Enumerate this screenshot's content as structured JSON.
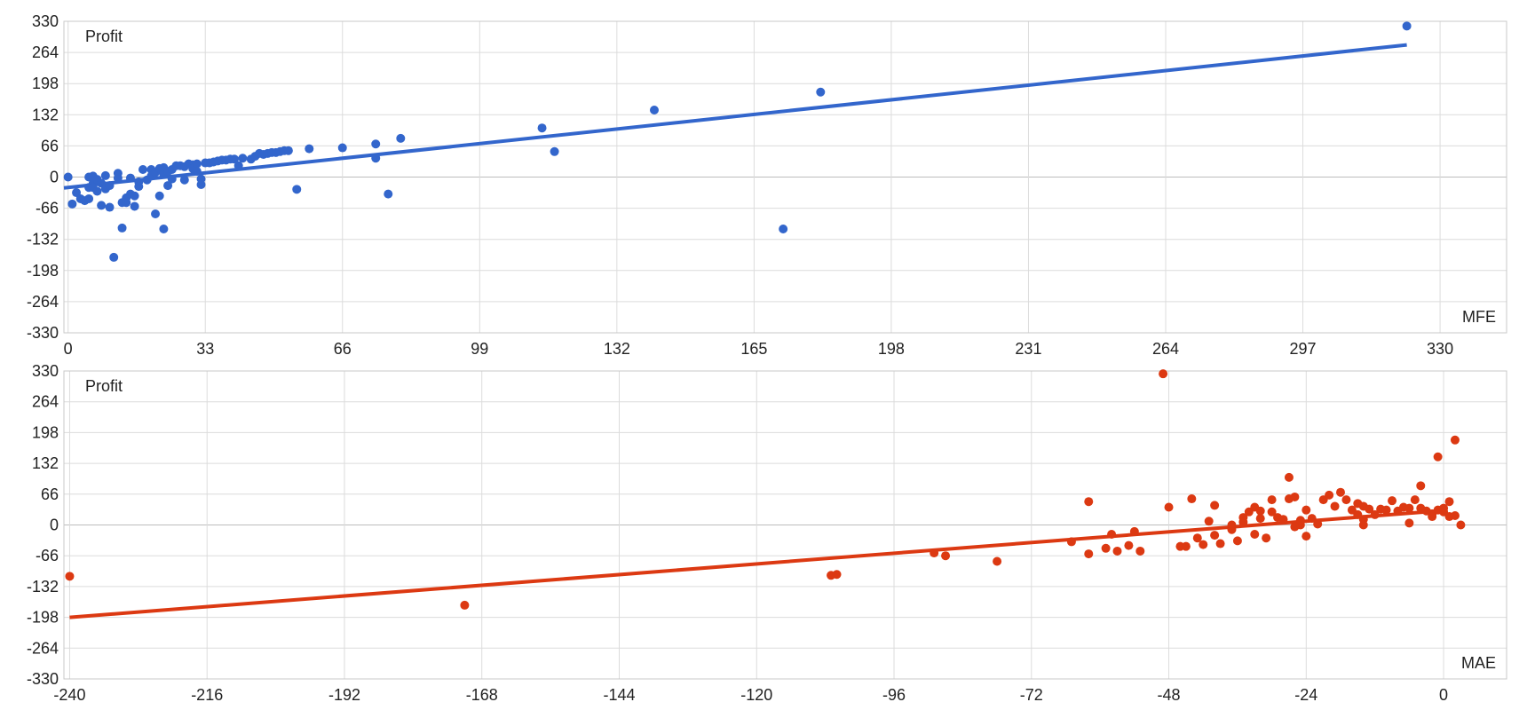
{
  "chart_data": [
    {
      "type": "scatter",
      "ylabel": "Profit",
      "xlabel": "MFE",
      "color": "#3366cc",
      "x_ticks": [
        0,
        33,
        66,
        99,
        132,
        165,
        198,
        231,
        264,
        297,
        330
      ],
      "y_ticks": [
        330,
        264,
        198,
        132,
        66,
        0,
        -66,
        -132,
        -198,
        -264,
        -330
      ],
      "xlim": [
        -1,
        346
      ],
      "ylim": [
        -330,
        330
      ],
      "grid": true,
      "trendline": {
        "x": [
          -1,
          322
        ],
        "y": [
          -23,
          280
        ]
      },
      "points": [
        [
          0,
          0
        ],
        [
          1,
          -57
        ],
        [
          2,
          -33
        ],
        [
          3,
          -46
        ],
        [
          4,
          -50
        ],
        [
          5,
          0
        ],
        [
          5,
          -22
        ],
        [
          5,
          -46
        ],
        [
          6,
          2
        ],
        [
          6,
          -14
        ],
        [
          6,
          -22
        ],
        [
          7,
          -5
        ],
        [
          7,
          -30
        ],
        [
          8,
          -13
        ],
        [
          8,
          -60
        ],
        [
          9,
          -25
        ],
        [
          9,
          3
        ],
        [
          10,
          -64
        ],
        [
          10,
          -18
        ],
        [
          11,
          -170
        ],
        [
          12,
          -2
        ],
        [
          12,
          8
        ],
        [
          13,
          -108
        ],
        [
          13,
          -54
        ],
        [
          14,
          -54
        ],
        [
          14,
          -44
        ],
        [
          15,
          -36
        ],
        [
          15,
          -2
        ],
        [
          16,
          -62
        ],
        [
          16,
          -40
        ],
        [
          17,
          -10
        ],
        [
          17,
          -20
        ],
        [
          18,
          16
        ],
        [
          19,
          -6
        ],
        [
          20,
          16
        ],
        [
          20,
          2
        ],
        [
          21,
          -78
        ],
        [
          21,
          10
        ],
        [
          22,
          -40
        ],
        [
          22,
          18
        ],
        [
          23,
          -110
        ],
        [
          23,
          6
        ],
        [
          23,
          20
        ],
        [
          24,
          12
        ],
        [
          24,
          -18
        ],
        [
          25,
          16
        ],
        [
          25,
          -4
        ],
        [
          26,
          24
        ],
        [
          27,
          24
        ],
        [
          28,
          22
        ],
        [
          28,
          -6
        ],
        [
          29,
          28
        ],
        [
          30,
          26
        ],
        [
          30,
          18
        ],
        [
          31,
          28
        ],
        [
          31,
          12
        ],
        [
          32,
          -4
        ],
        [
          32,
          -16
        ],
        [
          33,
          30
        ],
        [
          34,
          30
        ],
        [
          35,
          32
        ],
        [
          36,
          34
        ],
        [
          37,
          36
        ],
        [
          38,
          36
        ],
        [
          39,
          38
        ],
        [
          40,
          38
        ],
        [
          41,
          24
        ],
        [
          42,
          40
        ],
        [
          44,
          38
        ],
        [
          45,
          44
        ],
        [
          46,
          50
        ],
        [
          47,
          48
        ],
        [
          48,
          50
        ],
        [
          49,
          52
        ],
        [
          50,
          52
        ],
        [
          51,
          54
        ],
        [
          52,
          56
        ],
        [
          53,
          56
        ],
        [
          55,
          -26
        ],
        [
          58,
          60
        ],
        [
          66,
          62
        ],
        [
          74,
          70
        ],
        [
          74,
          40
        ],
        [
          77,
          -36
        ],
        [
          80,
          82
        ],
        [
          114,
          104
        ],
        [
          117,
          54
        ],
        [
          141,
          142
        ],
        [
          172,
          -110
        ],
        [
          181,
          180
        ],
        [
          322,
          320
        ]
      ]
    },
    {
      "type": "scatter",
      "ylabel": "Profit",
      "xlabel": "MAE",
      "color": "#dc3912",
      "x_ticks": [
        -240,
        -216,
        -192,
        -168,
        -144,
        -120,
        -96,
        -72,
        -48,
        -24,
        0
      ],
      "y_ticks": [
        330,
        264,
        198,
        132,
        66,
        0,
        -66,
        -132,
        -198,
        -264,
        -330
      ],
      "xlim": [
        -241,
        11
      ],
      "ylim": [
        -330,
        330
      ],
      "grid": true,
      "trendline": {
        "x": [
          -240,
          -1
        ],
        "y": [
          -198,
          30
        ]
      },
      "points": [
        [
          -240,
          -110
        ],
        [
          -171,
          -172
        ],
        [
          -107,
          -108
        ],
        [
          -106,
          -106
        ],
        [
          -89,
          -60
        ],
        [
          -87,
          -66
        ],
        [
          -78,
          -78
        ],
        [
          -65,
          -36
        ],
        [
          -62,
          -62
        ],
        [
          -62,
          50
        ],
        [
          -59,
          -50
        ],
        [
          -58,
          -20
        ],
        [
          -57,
          -56
        ],
        [
          -55,
          -44
        ],
        [
          -54,
          -14
        ],
        [
          -53,
          -56
        ],
        [
          -49,
          324
        ],
        [
          -48,
          38
        ],
        [
          -46,
          -46
        ],
        [
          -45,
          -46
        ],
        [
          -44,
          56
        ],
        [
          -43,
          -28
        ],
        [
          -42,
          -42
        ],
        [
          -41,
          8
        ],
        [
          -40,
          -22
        ],
        [
          -40,
          42
        ],
        [
          -39,
          -40
        ],
        [
          -37,
          -10
        ],
        [
          -37,
          0
        ],
        [
          -36,
          -34
        ],
        [
          -35,
          16
        ],
        [
          -35,
          6
        ],
        [
          -34,
          28
        ],
        [
          -33,
          38
        ],
        [
          -33,
          -20
        ],
        [
          -32,
          30
        ],
        [
          -32,
          14
        ],
        [
          -31,
          -28
        ],
        [
          -30,
          54
        ],
        [
          -30,
          28
        ],
        [
          -29,
          16
        ],
        [
          -28,
          12
        ],
        [
          -27,
          102
        ],
        [
          -27,
          56
        ],
        [
          -26,
          60
        ],
        [
          -26,
          -4
        ],
        [
          -25,
          0
        ],
        [
          -25,
          10
        ],
        [
          -24,
          32
        ],
        [
          -24,
          -24
        ],
        [
          -23,
          14
        ],
        [
          -22,
          2
        ],
        [
          -21,
          54
        ],
        [
          -20,
          64
        ],
        [
          -19,
          40
        ],
        [
          -18,
          70
        ],
        [
          -17,
          54
        ],
        [
          -16,
          32
        ],
        [
          -15,
          46
        ],
        [
          -15,
          22
        ],
        [
          -14,
          40
        ],
        [
          -14,
          12
        ],
        [
          -14,
          0
        ],
        [
          -13,
          34
        ],
        [
          -12,
          22
        ],
        [
          -11,
          34
        ],
        [
          -10,
          32
        ],
        [
          -9,
          52
        ],
        [
          -8,
          30
        ],
        [
          -7,
          38
        ],
        [
          -6,
          36
        ],
        [
          -6,
          4
        ],
        [
          -5,
          54
        ],
        [
          -4,
          84
        ],
        [
          -4,
          36
        ],
        [
          -3,
          30
        ],
        [
          -2,
          24
        ],
        [
          -2,
          18
        ],
        [
          -1,
          32
        ],
        [
          -1,
          146
        ],
        [
          0,
          28
        ],
        [
          0,
          36
        ],
        [
          1,
          50
        ],
        [
          1,
          18
        ],
        [
          2,
          182
        ],
        [
          2,
          20
        ],
        [
          3,
          0
        ]
      ]
    }
  ]
}
